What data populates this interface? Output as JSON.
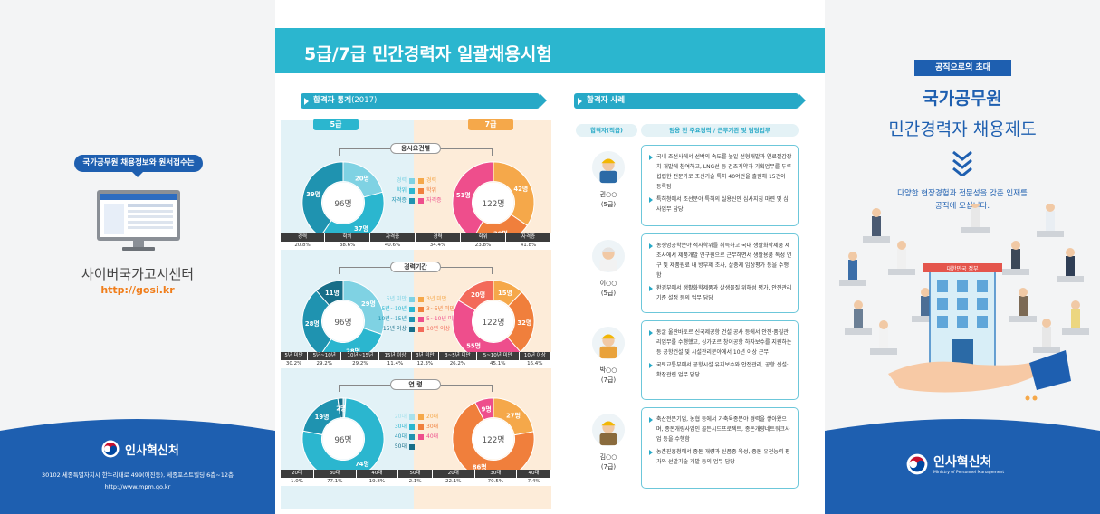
{
  "left": {
    "pill": "국가공무원 채용정보와 원서접수는",
    "center_name": "사이버국가고시센터",
    "url": "http://gosi.kr",
    "logo_name": "인사혁신처",
    "address_line1": "30102 세종특별자치시 한누리대로 499(어진동), 세종포스트빌딩 6층~12층",
    "address_line2": "http://www.mpm.go.kr"
  },
  "center": {
    "title": "5급/7급 민간경력자 일괄채용시험",
    "stats_head": "합격자 통계",
    "stats_year": "(2017)",
    "grade5": "5급",
    "grade7": "7급",
    "groups": [
      {
        "label": "응시요건별",
        "total5": "96명",
        "total7": "122명",
        "slices5": [
          "20명",
          "37명",
          "39명"
        ],
        "slices7": [
          "42명",
          "29명",
          "51명"
        ],
        "legend": [
          "경력",
          "학위",
          "자격증"
        ],
        "headers": [
          "경력",
          "학위",
          "자격증",
          "경력",
          "학위",
          "자격증"
        ],
        "values": [
          "20.8%",
          "38.6%",
          "40.6%",
          "34.4%",
          "23.8%",
          "41.8%"
        ]
      },
      {
        "label": "경력기간",
        "total5": "96명",
        "total7": "122명",
        "slices5": [
          "29명",
          "28명",
          "28명",
          "11명"
        ],
        "slices7": [
          "15명",
          "32명",
          "55명",
          "20명"
        ],
        "legend5": [
          "5년 미만",
          "5년~10년",
          "10년~15년",
          "15년 이상"
        ],
        "legend7": [
          "3년 미만",
          "3~5년 미만",
          "5~10년 미만",
          "10년 이상"
        ],
        "headers": [
          "5년 미만",
          "5년~10년",
          "10년~15년",
          "15년 이상",
          "3년 미만",
          "3~5년 미만",
          "5~10년 미만",
          "10년 이상"
        ],
        "values": [
          "30.2%",
          "29.2%",
          "29.2%",
          "11.4%",
          "12.3%",
          "26.2%",
          "45.1%",
          "16.4%"
        ]
      },
      {
        "label": "연 령",
        "total5": "96명",
        "total7": "122명",
        "slices5": [
          "1명",
          "74명",
          "19명",
          "2명"
        ],
        "slices7": [
          "27명",
          "86명",
          "9명"
        ],
        "legend5": [
          "20대",
          "30대",
          "40대",
          "50대"
        ],
        "legend7": [
          "20대",
          "30대",
          "40대"
        ],
        "headers": [
          "20대",
          "30대",
          "40대",
          "50대",
          "20대",
          "30대",
          "40대"
        ],
        "values": [
          "1.0%",
          "77.1%",
          "19.8%",
          "2.1%",
          "22.1%",
          "70.5%",
          "7.4%"
        ]
      }
    ],
    "cases_head": "합격자 사례",
    "case_col1": "합격자(직급)",
    "case_col2": "임용 전 주요경력 / 근무기관 및 담당업무",
    "cases": [
      {
        "name": "권○○",
        "grade": "(5급)",
        "bullets": [
          "국내 조선사에서 선박의 속도를 높일 선형개발과 연료절감장치 개발에 참여하고, LNG선 등 건조계약과 기획업무를 두루 섭렵한 전문가로 조선기술 특허 40여건을 출원해 15건이 등록됨",
          "특허청에서 조선분야 특허의 실용신안 심사지침 마련 및 심사업무 담당"
        ]
      },
      {
        "name": "이○○",
        "grade": "(5급)",
        "bullets": [
          "농생명공학분야 석사학위를 취득하고 국내 생활화학제품 제조사에서 제품개발 연구원으로 근무하면서 생활용품 독성 연구 및 제품원료 내 방부제 조사, 살충제 임상평가 등을 수행함",
          "환경부에서 생활화학제품과 살생물질 위해성 평가, 안전관리 기준 설정 등의 업무 담당"
        ]
      },
      {
        "name": "박○○",
        "grade": "(7급)",
        "bullets": [
          "동굴 울란바토르 신국제공항 건설 공사 등에서 안전·품질관리업무를 수행했고, 싱가포르 창이공항 하자보수를 지원하는 등 공항건설 및 시설관리분야에서 10년 이상 근무",
          "국토교통부에서 공항시설 유지보수와 안전관리, 공항 신설·확장관련 업무 담당"
        ]
      },
      {
        "name": "김○○",
        "grade": "(7급)",
        "bullets": [
          "축산전문기업, 농협 등에서 가축육종분야 경력을 쌓아왔으며, 종돈개량사업인 골든시드프로젝트, 종돈개량네트워크사업 등을 수행함",
          "농촌진흥청에서 종돈 개량과 신품종 육성, 종돈 유전능력 평가와 선발기술 개발 등의 업무 담당"
        ]
      }
    ]
  },
  "right": {
    "tag": "공직으로의 초대",
    "title1": "국가공무원",
    "title2": "민간경력자 채용제도",
    "desc1": "다양한 현장경험과 전문성을 갖춘 인재를",
    "desc2": "공직에 모십니다.",
    "building_sign": "대한민국 정부",
    "logo_name": "인사혁신처",
    "logo_sub": "Ministry of Personnel Management"
  },
  "colors": {
    "teal": "#2bb6cf",
    "navy": "#1e5fb0",
    "orange": "#f5a84a",
    "pink": "#ee4e8c"
  }
}
